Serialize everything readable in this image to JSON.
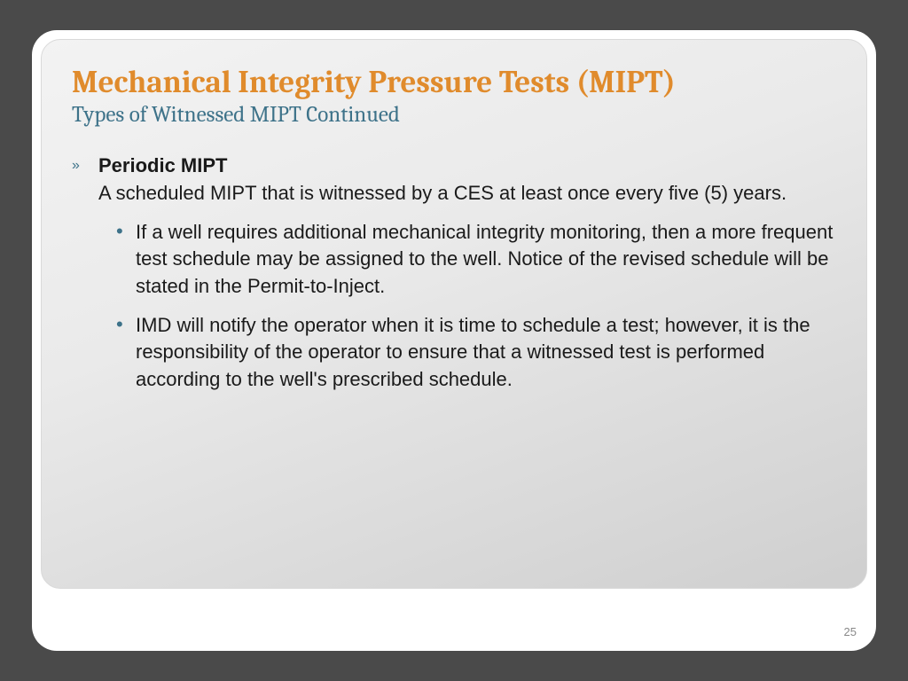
{
  "colors": {
    "page_bg": "#4a4a4a",
    "slide_bg": "#ffffff",
    "gradient_start": "#f3f3f3",
    "gradient_end": "#cfcfcf",
    "title_color": "#e08b2c",
    "subtitle_color": "#3d7289",
    "body_text": "#1a1a1a",
    "bullet_accent": "#3d7289",
    "page_num_color": "#888888"
  },
  "typography": {
    "title_font": "Cambria",
    "title_size_pt": 26,
    "subtitle_size_pt": 19,
    "body_font": "Arial",
    "body_size_pt": 17
  },
  "slide": {
    "title": "Mechanical Integrity Pressure Tests (MIPT)",
    "subtitle": "Types of Witnessed MIPT Continued",
    "page_number": "25",
    "bullets": [
      {
        "level": 1,
        "marker": "»",
        "heading": "Periodic MIPT",
        "text": "A scheduled MIPT that is witnessed by a CES at least once every five (5) years."
      },
      {
        "level": 2,
        "marker": "•",
        "text": "If a well requires additional mechanical integrity monitoring, then a more frequent test schedule may be assigned to the well.  Notice of the revised schedule will be stated in the Permit-to-Inject."
      },
      {
        "level": 2,
        "marker": "•",
        "text": "IMD will notify the operator when it is time to schedule a test; however, it is the responsibility of the operator to ensure that a witnessed test is performed according to the well's prescribed schedule."
      }
    ]
  }
}
